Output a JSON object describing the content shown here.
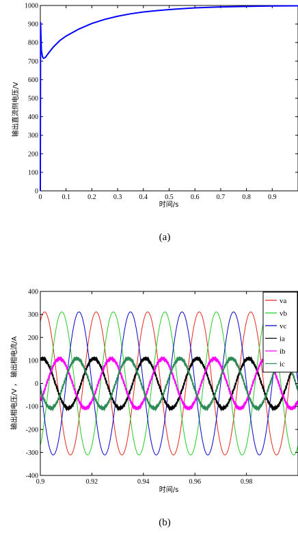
{
  "chart_data": [
    {
      "type": "line",
      "caption": "(a)",
      "xlabel": "时间/s",
      "ylabel": "输出直流侧电压/V",
      "xlim": [
        0,
        1.0
      ],
      "ylim": [
        0,
        1000
      ],
      "xticks": [
        0,
        0.1,
        0.2,
        0.3,
        0.4,
        0.5,
        0.6,
        0.7,
        0.8,
        0.9
      ],
      "xtick_labels": [
        "0",
        "0.1",
        "0.2",
        "0.3",
        "0.4",
        "0.5",
        "0.6",
        "0.7",
        "0.8",
        "0.9"
      ],
      "yticks": [
        0,
        100,
        200,
        300,
        400,
        500,
        600,
        700,
        800,
        900,
        1000
      ],
      "ytick_labels": [
        "0",
        "100",
        "200",
        "300",
        "400",
        "500",
        "600",
        "700",
        "800",
        "900",
        "1000"
      ],
      "grid": false,
      "series": [
        {
          "color": "#0000ff",
          "x": [
            0,
            0.001,
            0.002,
            0.004,
            0.008,
            0.012,
            0.02,
            0.03,
            0.05,
            0.075,
            0.1,
            0.15,
            0.2,
            0.25,
            0.3,
            0.35,
            0.4,
            0.45,
            0.5,
            0.6,
            0.7,
            0.8,
            0.9,
            1.0
          ],
          "y": [
            0,
            910,
            860,
            760,
            725,
            715,
            720,
            740,
            775,
            810,
            835,
            873,
            903,
            925,
            942,
            955,
            965,
            972,
            978,
            987,
            992,
            995,
            997,
            998
          ]
        }
      ]
    },
    {
      "type": "line",
      "caption": "(b)",
      "xlabel": "时间/s",
      "ylabel": "输出相电压/V ， 输出相电流/A",
      "xlim": [
        0.9,
        1.0
      ],
      "ylim": [
        -400,
        400
      ],
      "xticks": [
        0.9,
        0.92,
        0.94,
        0.96,
        0.98
      ],
      "xtick_labels": [
        "0.9",
        "0.92",
        "0.94",
        "0.96",
        "0.98"
      ],
      "yticks": [
        -400,
        -300,
        -200,
        -100,
        0,
        100,
        200,
        300,
        400
      ],
      "ytick_labels": [
        "-400",
        "-300",
        "-200",
        "-100",
        "0",
        "100",
        "200",
        "300",
        "400"
      ],
      "grid": false,
      "legend": "top-right",
      "series": [
        {
          "name": "va",
          "color": "#e8261c",
          "amplitude": 311,
          "frequency_hz": 50,
          "phase_deg": 60,
          "ripple": 0
        },
        {
          "name": "vb",
          "color": "#22cc22",
          "amplitude": 311,
          "frequency_hz": 50,
          "phase_deg": -60,
          "ripple": 0
        },
        {
          "name": "vc",
          "color": "#0000cc",
          "amplitude": 311,
          "frequency_hz": 50,
          "phase_deg": 180,
          "ripple": 0
        },
        {
          "name": "ia",
          "color": "#000000",
          "amplitude": 108,
          "frequency_hz": 50,
          "phase_deg": 75,
          "ripple": 7
        },
        {
          "name": "ib",
          "color": "#ff00ff",
          "amplitude": 108,
          "frequency_hz": 50,
          "phase_deg": -45,
          "ripple": 7
        },
        {
          "name": "ic",
          "color": "#2e8b57",
          "amplitude": 108,
          "frequency_hz": 50,
          "phase_deg": 195,
          "ripple": 7
        }
      ]
    }
  ]
}
